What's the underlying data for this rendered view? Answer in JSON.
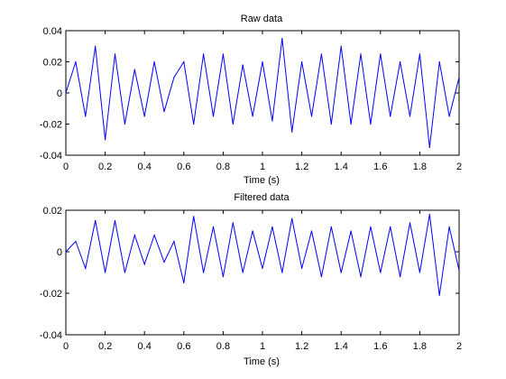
{
  "window": {
    "background": "#ffffff"
  },
  "chart_data": [
    {
      "type": "line",
      "title": "Raw data",
      "xlabel": "Time (s)",
      "ylabel": "",
      "xlim": [
        0,
        2
      ],
      "ylim": [
        -0.04,
        0.04
      ],
      "xticks": [
        0,
        0.2,
        0.4,
        0.6,
        0.8,
        1,
        1.2,
        1.4,
        1.6,
        1.8,
        2
      ],
      "xtick_labels": [
        "0",
        "0.2",
        "0.4",
        "0.6",
        "0.8",
        "1",
        "1.2",
        "1.4",
        "1.6",
        "1.8",
        "2"
      ],
      "yticks": [
        -0.04,
        -0.02,
        0,
        0.02,
        0.04
      ],
      "ytick_labels": [
        "-0.04",
        "-0.02",
        "0",
        "0.02",
        "0.04"
      ],
      "grid": false,
      "legend": "none",
      "series": [
        {
          "color": "#0000ff",
          "x": [
            0,
            0.05,
            0.1,
            0.15,
            0.2,
            0.25,
            0.3,
            0.35,
            0.4,
            0.45,
            0.5,
            0.55,
            0.6,
            0.65,
            0.7,
            0.75,
            0.8,
            0.85,
            0.9,
            0.95,
            1.0,
            1.05,
            1.1,
            1.15,
            1.2,
            1.25,
            1.3,
            1.35,
            1.4,
            1.45,
            1.5,
            1.55,
            1.6,
            1.65,
            1.7,
            1.75,
            1.8,
            1.85,
            1.9,
            1.95,
            2.0
          ],
          "y": [
            0.0,
            0.02,
            -0.015,
            0.03,
            -0.03,
            0.025,
            -0.02,
            0.015,
            -0.015,
            0.02,
            -0.012,
            0.01,
            0.02,
            -0.02,
            0.025,
            -0.015,
            0.025,
            -0.02,
            0.018,
            -0.015,
            0.02,
            -0.018,
            0.035,
            -0.025,
            0.02,
            -0.015,
            0.025,
            -0.02,
            0.03,
            -0.02,
            0.025,
            -0.02,
            0.025,
            -0.015,
            0.02,
            -0.015,
            0.025,
            -0.035,
            0.02,
            -0.015,
            0.01
          ]
        }
      ]
    },
    {
      "type": "line",
      "title": "Filtered data",
      "xlabel": "Time (s)",
      "ylabel": "",
      "xlim": [
        0,
        2
      ],
      "ylim": [
        -0.04,
        0.02
      ],
      "xticks": [
        0,
        0.2,
        0.4,
        0.6,
        0.8,
        1,
        1.2,
        1.4,
        1.6,
        1.8,
        2
      ],
      "xtick_labels": [
        "0",
        "0.2",
        "0.4",
        "0.6",
        "0.8",
        "1",
        "1.2",
        "1.4",
        "1.6",
        "1.8",
        "2"
      ],
      "yticks": [
        -0.04,
        -0.02,
        0,
        0.02
      ],
      "ytick_labels": [
        "-0.04",
        "-0.02",
        "0",
        "0.02"
      ],
      "grid": false,
      "legend": "none",
      "series": [
        {
          "color": "#0000ff",
          "x": [
            0,
            0.05,
            0.1,
            0.15,
            0.2,
            0.25,
            0.3,
            0.35,
            0.4,
            0.45,
            0.5,
            0.55,
            0.6,
            0.65,
            0.7,
            0.75,
            0.8,
            0.85,
            0.9,
            0.95,
            1.0,
            1.05,
            1.1,
            1.15,
            1.2,
            1.25,
            1.3,
            1.35,
            1.4,
            1.45,
            1.5,
            1.55,
            1.6,
            1.65,
            1.7,
            1.75,
            1.8,
            1.85,
            1.9,
            1.95,
            2.0
          ],
          "y": [
            0.0,
            0.005,
            -0.008,
            0.015,
            -0.01,
            0.015,
            -0.01,
            0.008,
            -0.006,
            0.008,
            -0.005,
            0.005,
            -0.015,
            0.017,
            -0.01,
            0.012,
            -0.012,
            0.014,
            -0.01,
            0.01,
            -0.008,
            0.012,
            -0.01,
            0.016,
            -0.008,
            0.01,
            -0.012,
            0.012,
            -0.01,
            0.01,
            -0.012,
            0.012,
            -0.01,
            0.012,
            -0.012,
            0.014,
            -0.01,
            0.018,
            -0.021,
            0.012,
            -0.009
          ]
        }
      ]
    }
  ]
}
